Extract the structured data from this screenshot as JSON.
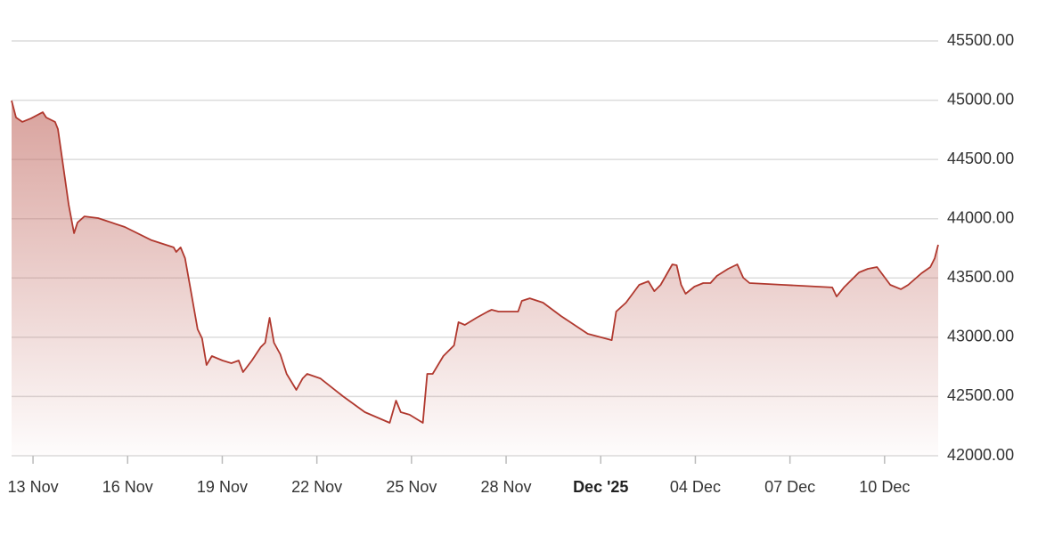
{
  "chart_data": {
    "type": "area",
    "color": "#b0382e",
    "grid": true,
    "xlim": [
      12.32,
      41.7
    ],
    "ylim": [
      42000,
      45500
    ],
    "xticks": [
      {
        "value": 13,
        "label": "13 Nov"
      },
      {
        "value": 16,
        "label": "16 Nov"
      },
      {
        "value": 19,
        "label": "19 Nov"
      },
      {
        "value": 22,
        "label": "22 Nov"
      },
      {
        "value": 25,
        "label": "25 Nov"
      },
      {
        "value": 28,
        "label": "28 Nov"
      },
      {
        "value": 31,
        "label": "Dec '25",
        "weight": "bold"
      },
      {
        "value": 34,
        "label": "04 Dec"
      },
      {
        "value": 37,
        "label": "07 Dec"
      },
      {
        "value": 40,
        "label": "10 Dec"
      }
    ],
    "yticks": [
      {
        "value": 42000,
        "label": "42000.00"
      },
      {
        "value": 42500,
        "label": "42500.00"
      },
      {
        "value": 43000,
        "label": "43000.00"
      },
      {
        "value": 43500,
        "label": "43500.00"
      },
      {
        "value": 44000,
        "label": "44000.00"
      },
      {
        "value": 44500,
        "label": "44500.00"
      },
      {
        "value": 45000,
        "label": "45000.00"
      },
      {
        "value": 45500,
        "label": "45500.00"
      }
    ],
    "x": [
      12.32,
      12.46,
      12.66,
      12.94,
      13.31,
      13.42,
      13.7,
      13.79,
      13.93,
      14.13,
      14.3,
      14.41,
      14.63,
      15.06,
      15.91,
      16.76,
      17.46,
      17.54,
      17.68,
      17.82,
      18.02,
      18.22,
      18.36,
      18.5,
      18.67,
      19.01,
      19.29,
      19.52,
      19.66,
      19.94,
      20.22,
      20.36,
      20.5,
      20.64,
      20.84,
      21.04,
      21.35,
      21.55,
      21.69,
      22.11,
      22.82,
      23.52,
      24.31,
      24.51,
      24.66,
      24.94,
      25.36,
      25.5,
      25.67,
      26.01,
      26.35,
      26.49,
      26.69,
      27.06,
      27.42,
      27.54,
      27.76,
      28.38,
      28.5,
      28.75,
      29.17,
      29.74,
      30.59,
      31.35,
      31.49,
      31.8,
      32.22,
      32.51,
      32.7,
      32.9,
      33.27,
      33.41,
      33.55,
      33.69,
      33.97,
      34.25,
      34.48,
      34.68,
      35.04,
      35.33,
      35.52,
      35.72,
      36.79,
      38.34,
      38.48,
      38.71,
      39.19,
      39.47,
      39.76,
      40.18,
      40.52,
      40.75,
      41.17,
      41.45,
      41.59,
      41.7
    ],
    "values": [
      44997,
      44854,
      44817,
      44847,
      44899,
      44854,
      44817,
      44757,
      44494,
      44118,
      43878,
      43968,
      44020,
      44005,
      43930,
      43818,
      43758,
      43720,
      43758,
      43667,
      43367,
      43067,
      42991,
      42766,
      42841,
      42804,
      42781,
      42804,
      42706,
      42804,
      42916,
      42954,
      43164,
      42954,
      42856,
      42691,
      42556,
      42653,
      42691,
      42653,
      42503,
      42368,
      42278,
      42466,
      42368,
      42346,
      42278,
      42691,
      42691,
      42841,
      42931,
      43127,
      43104,
      43164,
      43217,
      43232,
      43217,
      43217,
      43307,
      43329,
      43292,
      43179,
      43029,
      42976,
      43217,
      43292,
      43442,
      43472,
      43389,
      43442,
      43615,
      43607,
      43442,
      43367,
      43427,
      43457,
      43457,
      43517,
      43577,
      43615,
      43502,
      43457,
      43442,
      43420,
      43344,
      43420,
      43547,
      43577,
      43592,
      43442,
      43405,
      43442,
      43540,
      43592,
      43667,
      43780
    ]
  }
}
